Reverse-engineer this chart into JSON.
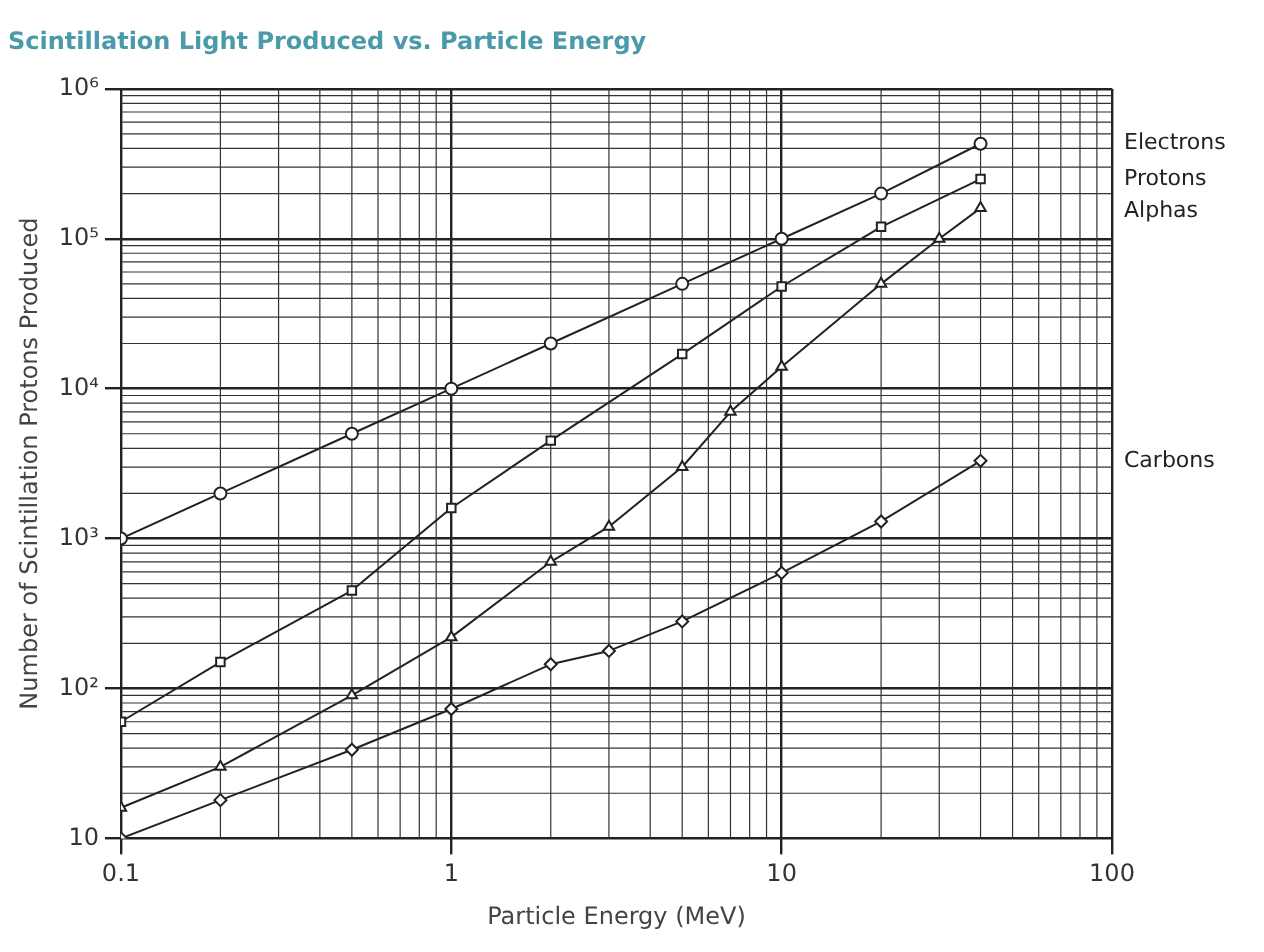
{
  "chart_data": {
    "type": "line",
    "title": "Scintillation Light Produced vs. Particle Energy",
    "xlabel": "Particle Energy (MeV)",
    "ylabel": "Number of Scintillation Protons Produced",
    "log": "xy",
    "grid": true,
    "legend": false,
    "line_style": "solid",
    "xlim": [
      0.1,
      100
    ],
    "xticks": [
      0.1,
      1,
      10,
      100
    ],
    "ylim": [
      10,
      1000000
    ],
    "yticks": [
      10,
      {
        "value": 100,
        "label": "10²"
      },
      {
        "value": 1000,
        "label": "10³"
      },
      {
        "value": 10000,
        "label": "10⁴"
      },
      {
        "value": 100000,
        "label": "10⁵"
      },
      {
        "value": 1000000,
        "label": "10⁶"
      }
    ],
    "series": [
      {
        "name": "Electrons",
        "color": "#222222",
        "marker": "circle",
        "x": [
          0.1,
          0.2,
          0.5,
          1,
          2,
          5,
          10,
          20,
          40
        ],
        "values": [
          1000,
          2000,
          5000,
          10000,
          20000,
          50000,
          100000,
          200000,
          430000
        ]
      },
      {
        "name": "Protons",
        "color": "#222222",
        "marker": "square",
        "x": [
          0.1,
          0.2,
          0.5,
          1,
          2,
          5,
          10,
          20,
          40
        ],
        "values": [
          60,
          150,
          450,
          1600,
          4500,
          17000,
          48000,
          120000,
          250000
        ]
      },
      {
        "name": "Alphas",
        "color": "#222222",
        "marker": "triangle",
        "x": [
          0.1,
          0.2,
          0.5,
          1,
          2,
          3,
          5,
          7,
          10,
          20,
          30,
          40
        ],
        "values": [
          16,
          30,
          90,
          220,
          700,
          1200,
          3000,
          7000,
          14000,
          50000,
          100000,
          160000
        ]
      },
      {
        "name": "Carbons",
        "color": "#222222",
        "marker": "diamond",
        "x": [
          0.1,
          0.2,
          0.5,
          1,
          2,
          3,
          5,
          10,
          20,
          40
        ],
        "values": [
          10,
          18,
          39,
          73,
          145,
          178,
          280,
          590,
          1300,
          3300
        ]
      }
    ]
  }
}
